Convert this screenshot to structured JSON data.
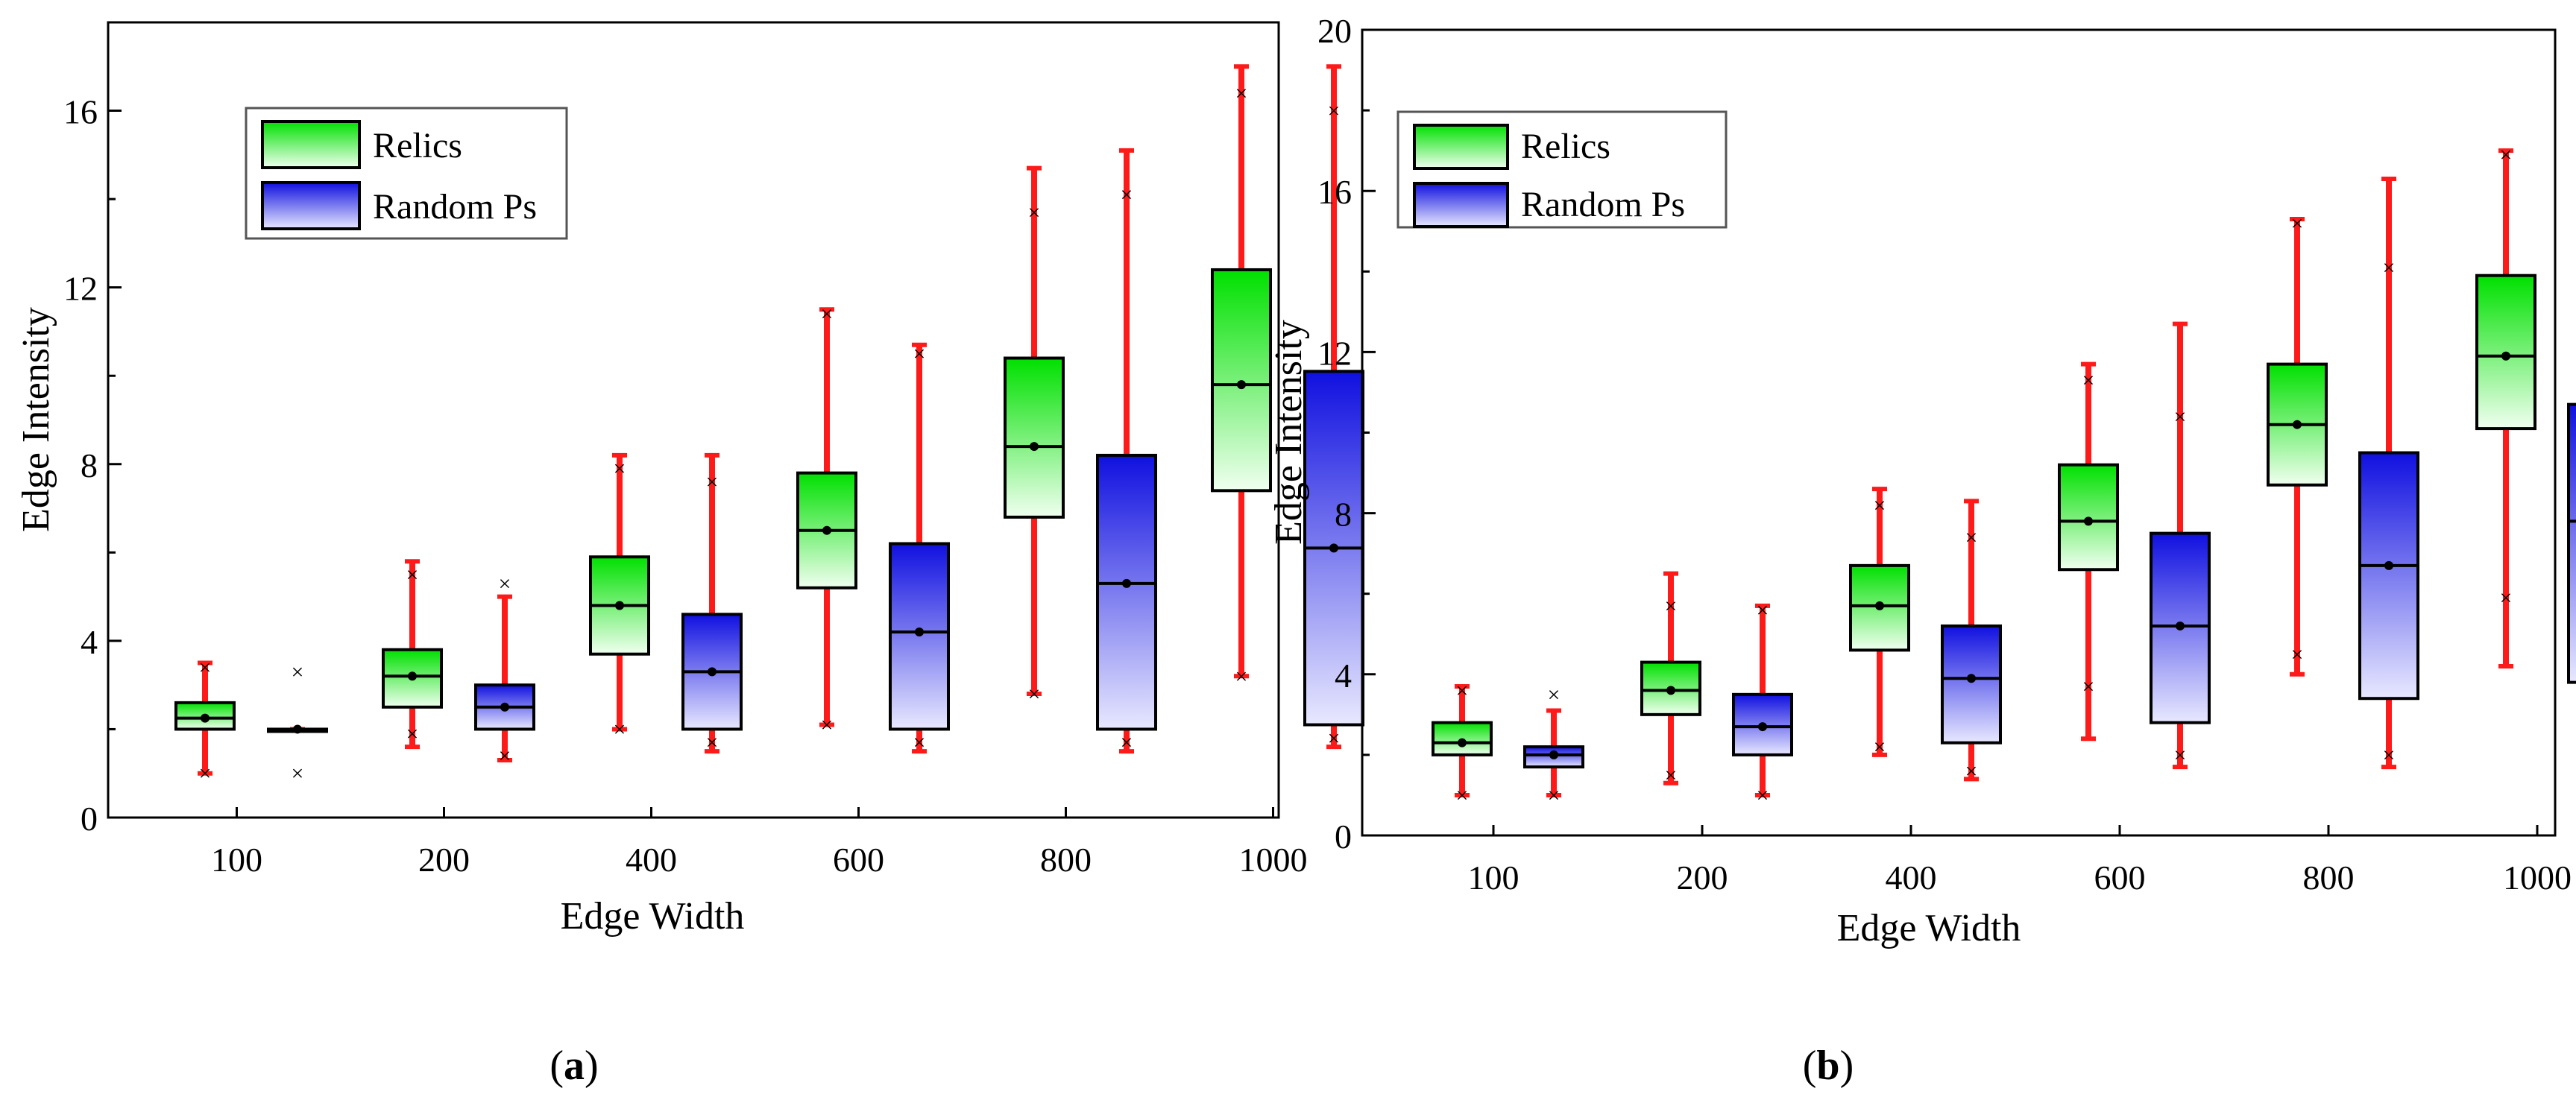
{
  "chart_data": [
    {
      "type": "box",
      "panel_label": "a",
      "xlabel": "Edge Width",
      "ylabel": "Edge Intensity",
      "ylim": [
        0,
        18
      ],
      "yticks": [
        0,
        4,
        8,
        12,
        16
      ],
      "categories": [
        "100",
        "200",
        "400",
        "600",
        "800",
        "1000"
      ],
      "legend": {
        "position": "top-left",
        "entries": [
          "Relics",
          "Random Ps"
        ]
      },
      "series": [
        {
          "name": "Relics",
          "colors": [
            "#00e000",
            "#f0fff0"
          ],
          "boxes": [
            {
              "min": 1.0,
              "q1": 2.0,
              "median": 2.25,
              "q3": 2.6,
              "max": 3.5,
              "mean": 2.25,
              "x_marks": [
                1.0,
                3.4
              ]
            },
            {
              "min": 1.6,
              "q1": 2.5,
              "median": 3.2,
              "q3": 3.8,
              "max": 5.8,
              "mean": 3.2,
              "x_marks": [
                1.9,
                5.5
              ]
            },
            {
              "min": 2.0,
              "q1": 3.7,
              "median": 4.8,
              "q3": 5.9,
              "max": 8.2,
              "mean": 4.8,
              "x_marks": [
                2.0,
                7.9
              ]
            },
            {
              "min": 2.1,
              "q1": 5.2,
              "median": 6.5,
              "q3": 7.8,
              "max": 11.5,
              "mean": 6.5,
              "x_marks": [
                2.1,
                11.4
              ]
            },
            {
              "min": 2.8,
              "q1": 6.8,
              "median": 8.4,
              "q3": 10.4,
              "max": 14.7,
              "mean": 8.4,
              "x_marks": [
                2.8,
                13.7
              ]
            },
            {
              "min": 3.2,
              "q1": 7.4,
              "median": 9.8,
              "q3": 12.4,
              "max": 17.0,
              "mean": 9.8,
              "x_marks": [
                3.2,
                16.4
              ]
            }
          ]
        },
        {
          "name": "Random Ps",
          "colors": [
            "#1010e0",
            "#e8e8ff"
          ],
          "boxes": [
            {
              "min": 2.0,
              "q1": 2.0,
              "median": 2.0,
              "q3": 2.0,
              "max": 2.0,
              "mean": 2.0,
              "x_marks": [
                1.0,
                3.3
              ]
            },
            {
              "min": 1.3,
              "q1": 2.0,
              "median": 2.5,
              "q3": 3.0,
              "max": 5.0,
              "mean": 2.5,
              "x_marks": [
                1.4,
                5.3
              ]
            },
            {
              "min": 1.5,
              "q1": 2.0,
              "median": 3.3,
              "q3": 4.6,
              "max": 8.2,
              "mean": 3.3,
              "x_marks": [
                1.7,
                7.6
              ]
            },
            {
              "min": 1.5,
              "q1": 2.0,
              "median": 4.2,
              "q3": 6.2,
              "max": 10.7,
              "mean": 4.2,
              "x_marks": [
                1.7,
                10.5
              ]
            },
            {
              "min": 1.5,
              "q1": 2.0,
              "median": 5.3,
              "q3": 8.2,
              "max": 15.1,
              "mean": 5.3,
              "x_marks": [
                1.7,
                14.1
              ]
            },
            {
              "min": 1.6,
              "q1": 2.1,
              "median": 6.1,
              "q3": 10.1,
              "max": 17.0,
              "mean": 6.1,
              "x_marks": [
                1.8,
                16.0
              ]
            }
          ]
        }
      ]
    },
    {
      "type": "box",
      "panel_label": "b",
      "xlabel": "Edge Width",
      "ylabel": "Edge Intensity",
      "ylim": [
        0,
        20
      ],
      "yticks": [
        0,
        4,
        8,
        12,
        16,
        20
      ],
      "categories": [
        "100",
        "200",
        "400",
        "600",
        "800",
        "1000"
      ],
      "legend": {
        "position": "top-left",
        "entries": [
          "Relics",
          "Random Ps"
        ]
      },
      "series": [
        {
          "name": "Relics",
          "colors": [
            "#00e000",
            "#f0fff0"
          ],
          "boxes": [
            {
              "min": 1.0,
              "q1": 2.0,
              "median": 2.3,
              "q3": 2.8,
              "max": 3.7,
              "mean": 2.3,
              "x_marks": [
                1.0,
                3.6
              ]
            },
            {
              "min": 1.3,
              "q1": 3.0,
              "median": 3.6,
              "q3": 4.3,
              "max": 6.5,
              "mean": 3.6,
              "x_marks": [
                1.5,
                5.7
              ]
            },
            {
              "min": 2.0,
              "q1": 4.6,
              "median": 5.7,
              "q3": 6.7,
              "max": 8.6,
              "mean": 5.7,
              "x_marks": [
                2.2,
                8.2
              ]
            },
            {
              "min": 2.4,
              "q1": 6.6,
              "median": 7.8,
              "q3": 9.2,
              "max": 11.7,
              "mean": 7.8,
              "x_marks": [
                3.7,
                11.3
              ]
            },
            {
              "min": 4.0,
              "q1": 8.7,
              "median": 10.2,
              "q3": 11.7,
              "max": 15.3,
              "mean": 10.2,
              "x_marks": [
                4.5,
                15.2
              ]
            },
            {
              "min": 4.2,
              "q1": 10.1,
              "median": 11.9,
              "q3": 13.9,
              "max": 17.0,
              "mean": 11.9,
              "x_marks": [
                5.9,
                16.9
              ]
            }
          ]
        },
        {
          "name": "Random Ps",
          "colors": [
            "#1010e0",
            "#e8e8ff"
          ],
          "boxes": [
            {
              "min": 1.0,
              "q1": 1.7,
              "median": 2.0,
              "q3": 2.2,
              "max": 3.1,
              "mean": 2.0,
              "x_marks": [
                1.0,
                3.5
              ]
            },
            {
              "min": 1.0,
              "q1": 2.0,
              "median": 2.7,
              "q3": 3.5,
              "max": 5.7,
              "mean": 2.7,
              "x_marks": [
                1.0,
                5.6
              ]
            },
            {
              "min": 1.4,
              "q1": 2.3,
              "median": 3.9,
              "q3": 5.2,
              "max": 8.3,
              "mean": 3.9,
              "x_marks": [
                1.6,
                7.4
              ]
            },
            {
              "min": 1.7,
              "q1": 2.8,
              "median": 5.2,
              "q3": 7.5,
              "max": 12.7,
              "mean": 5.2,
              "x_marks": [
                2.0,
                10.4
              ]
            },
            {
              "min": 1.7,
              "q1": 3.4,
              "median": 6.7,
              "q3": 9.5,
              "max": 16.3,
              "mean": 6.7,
              "x_marks": [
                2.0,
                14.1
              ]
            },
            {
              "min": 1.9,
              "q1": 3.8,
              "median": 7.8,
              "q3": 10.7,
              "max": 18.7,
              "mean": 7.8,
              "x_marks": [
                2.0,
                16.3
              ]
            }
          ]
        }
      ]
    }
  ]
}
